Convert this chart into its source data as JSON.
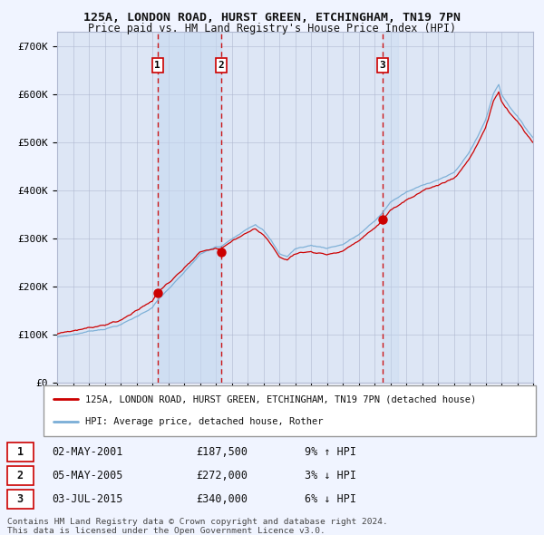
{
  "title1": "125A, LONDON ROAD, HURST GREEN, ETCHINGHAM, TN19 7PN",
  "title2": "Price paid vs. HM Land Registry's House Price Index (HPI)",
  "legend_label_red": "125A, LONDON ROAD, HURST GREEN, ETCHINGHAM, TN19 7PN (detached house)",
  "legend_label_blue": "HPI: Average price, detached house, Rother",
  "transactions": [
    {
      "num": 1,
      "date": "02-MAY-2001",
      "price": 187500,
      "year": 2001.33,
      "pct": "9%",
      "dir": "↑"
    },
    {
      "num": 2,
      "date": "05-MAY-2005",
      "price": 272000,
      "year": 2005.33,
      "pct": "3%",
      "dir": "↓"
    },
    {
      "num": 3,
      "date": "03-JUL-2015",
      "price": 340000,
      "year": 2015.5,
      "pct": "6%",
      "dir": "↓"
    }
  ],
  "footnote1": "Contains HM Land Registry data © Crown copyright and database right 2024.",
  "footnote2": "This data is licensed under the Open Government Licence v3.0.",
  "bg_color": "#f0f4ff",
  "plot_bg": "#dde6f5",
  "red_line_color": "#cc0000",
  "blue_line_color": "#7aaed6",
  "dashed_color": "#cc0000",
  "grid_color": "#b0b8d0",
  "ylim": [
    0,
    730000
  ],
  "yticks": [
    0,
    100000,
    200000,
    300000,
    400000,
    500000,
    600000,
    700000
  ],
  "ytick_labels": [
    "£0",
    "£100K",
    "£200K",
    "£300K",
    "£400K",
    "£500K",
    "£600K",
    "£700K"
  ],
  "xstart": 1995,
  "xend": 2025
}
